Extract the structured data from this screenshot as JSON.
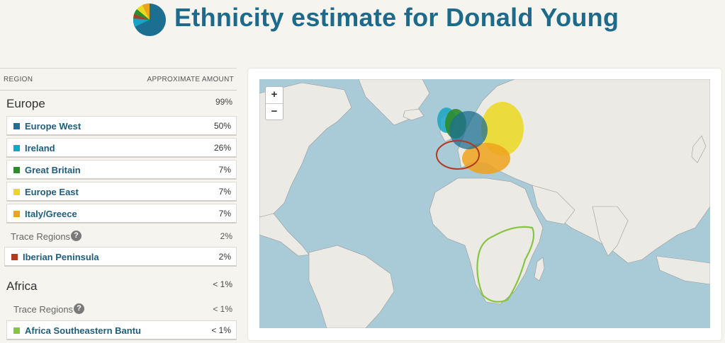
{
  "page": {
    "title": "Ethnicity estimate for Donald Young"
  },
  "colors": {
    "title": "#1e6a8a",
    "europe_west": "#1d6f92",
    "ireland": "#19a4c4",
    "great_britain": "#2d8c2a",
    "europe_east": "#ecd81f",
    "italy_greece": "#f0a21c",
    "iberian_peninsula": "#b23a1e",
    "africa_southeastern_bantu": "#87c541"
  },
  "table": {
    "col_region": "REGION",
    "col_amount": "APPROXIMATE AMOUNT",
    "europe": {
      "name": "Europe",
      "pct": "99%",
      "items": [
        {
          "label": "Europe West",
          "pct": "50%"
        },
        {
          "label": "Ireland",
          "pct": "26%"
        },
        {
          "label": "Great Britain",
          "pct": "7%"
        },
        {
          "label": "Europe East",
          "pct": "7%"
        },
        {
          "label": "Italy/Greece",
          "pct": "7%"
        }
      ],
      "trace_label": "Trace Regions",
      "trace_pct": "2%",
      "trace_items": [
        {
          "label": "Iberian Peninsula",
          "pct": "2%"
        }
      ]
    },
    "africa": {
      "name": "Africa",
      "pct": "< 1%",
      "trace_label": "Trace Regions",
      "trace_pct": "< 1%",
      "trace_items": [
        {
          "label": "Africa Southeastern Bantu",
          "pct": "< 1%"
        }
      ]
    }
  },
  "map": {
    "zoom_in": "+",
    "zoom_out": "−"
  }
}
